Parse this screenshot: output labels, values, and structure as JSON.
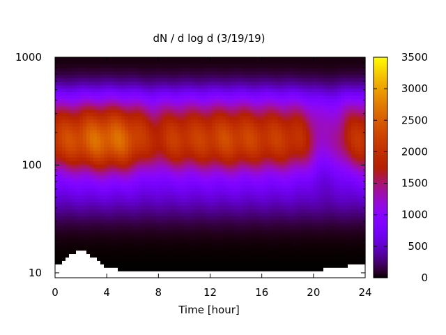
{
  "chart_data": {
    "type": "heatmap",
    "title": "dN / d log d (3/19/19)",
    "xlabel": "Time [hour]",
    "ylabel": "",
    "xlim": [
      0,
      24
    ],
    "ylim": [
      9,
      1000
    ],
    "y_scale": "log",
    "x_ticks": [
      "0",
      "4",
      "8",
      "12",
      "16",
      "20",
      "24"
    ],
    "y_ticks": [
      "10",
      "100",
      "1000"
    ],
    "colorbar": {
      "range": [
        0,
        3500
      ],
      "ticks": [
        "0",
        "500",
        "1000",
        "1500",
        "2000",
        "2500",
        "3000",
        "3500"
      ],
      "palette": "gnuplot"
    },
    "dominant_mode_diameter_approx": 160,
    "peak_value_approx": 2600,
    "peak_time_approx": 4
  }
}
